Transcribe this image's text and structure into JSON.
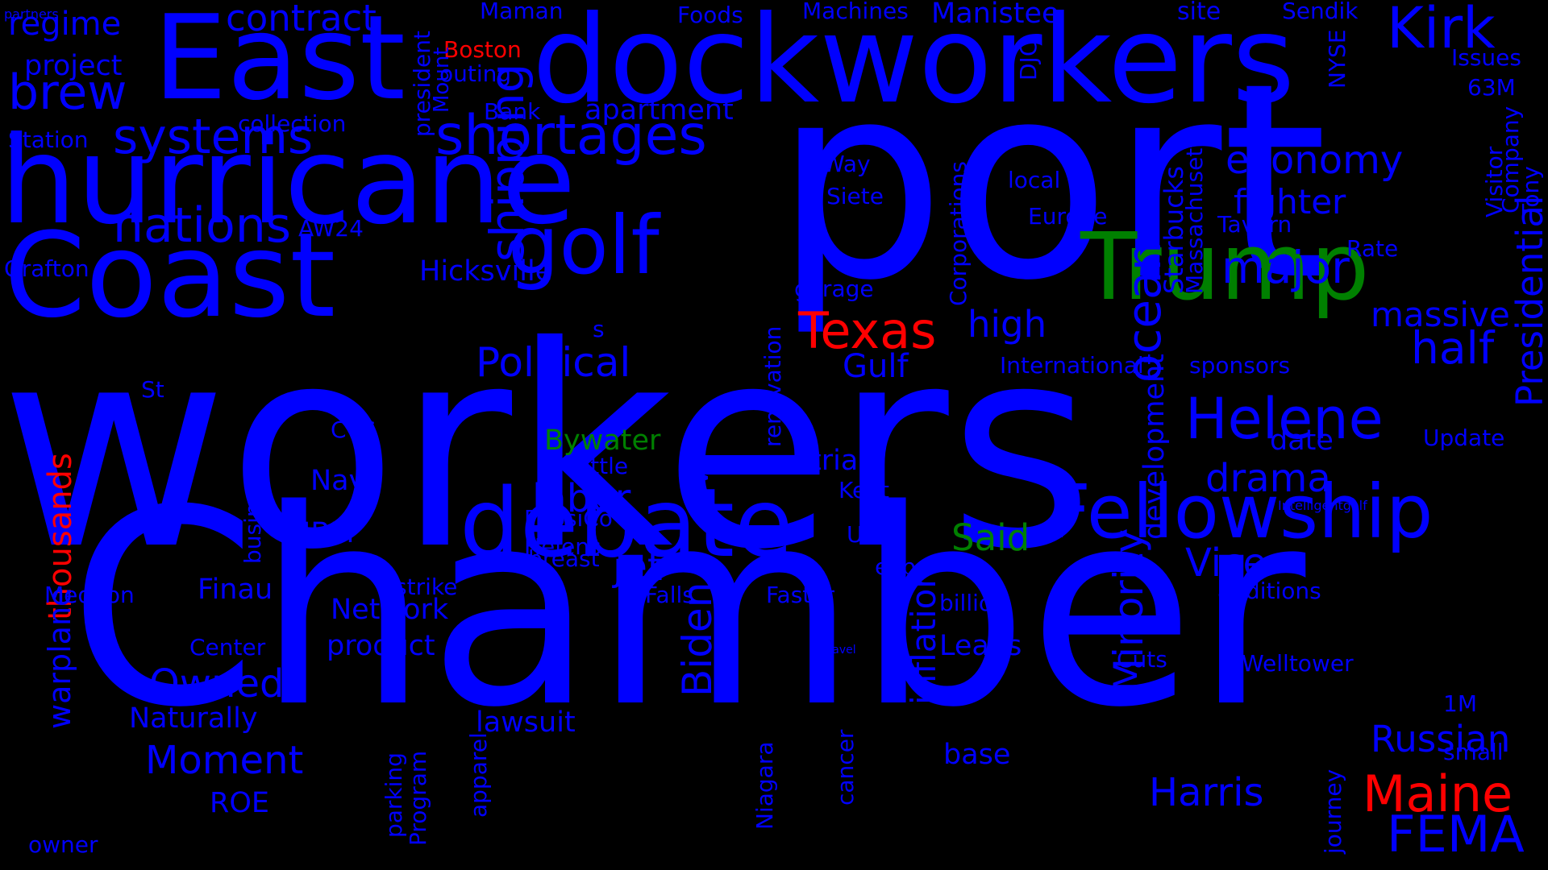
{
  "palette": {
    "background": "#000000",
    "primary": "#0000ff",
    "accent_red": "#ff0000",
    "accent_green": "#008000"
  },
  "words": [
    {
      "text": "workers",
      "color": "#0000ff"
    },
    {
      "text": "Chamber",
      "color": "#0000ff"
    },
    {
      "text": "port",
      "color": "#0000ff"
    },
    {
      "text": "hurricane",
      "color": "#0000ff"
    },
    {
      "text": "dockworkers",
      "color": "#0000ff"
    },
    {
      "text": "East",
      "color": "#0000ff"
    },
    {
      "text": "Coast",
      "color": "#0000ff"
    },
    {
      "text": "Fellowship",
      "color": "#0000ff"
    },
    {
      "text": "debate",
      "color": "#0000ff"
    },
    {
      "text": "Trump",
      "color": "#008000"
    },
    {
      "text": "shortages",
      "color": "#0000ff"
    },
    {
      "text": "golf",
      "color": "#0000ff"
    },
    {
      "text": "systems",
      "color": "#0000ff"
    },
    {
      "text": "Helene",
      "color": "#0000ff"
    },
    {
      "text": "brew",
      "color": "#0000ff"
    },
    {
      "text": "nations",
      "color": "#0000ff"
    },
    {
      "text": "Kirk",
      "color": "#0000ff"
    },
    {
      "text": "Texas",
      "color": "#ff0000"
    },
    {
      "text": "Maine",
      "color": "#ff0000"
    },
    {
      "text": "FEMA",
      "color": "#0000ff"
    },
    {
      "text": "major",
      "color": "#0000ff"
    },
    {
      "text": "half",
      "color": "#0000ff"
    },
    {
      "text": "economy",
      "color": "#0000ff"
    },
    {
      "text": "contract",
      "color": "#0000ff"
    },
    {
      "text": "Political",
      "color": "#0000ff"
    },
    {
      "text": "shipping",
      "color": "#0000ff"
    },
    {
      "text": "ocean",
      "color": "#0000ff"
    },
    {
      "text": "Presidential",
      "color": "#0000ff"
    },
    {
      "text": "Owned",
      "color": "#0000ff"
    },
    {
      "text": "Moment",
      "color": "#0000ff"
    },
    {
      "text": "Harris",
      "color": "#0000ff"
    },
    {
      "text": "Russian",
      "color": "#0000ff"
    },
    {
      "text": "drama",
      "color": "#0000ff"
    },
    {
      "text": "Vice",
      "color": "#0000ff"
    },
    {
      "text": "Minority",
      "color": "#0000ff"
    },
    {
      "text": "inflation",
      "color": "#0000ff"
    },
    {
      "text": "Biden",
      "color": "#0000ff"
    },
    {
      "text": "massive",
      "color": "#0000ff"
    },
    {
      "text": "fighter",
      "color": "#0000ff"
    },
    {
      "text": "high",
      "color": "#0000ff"
    },
    {
      "text": "Gulf",
      "color": "#0000ff"
    },
    {
      "text": "labor",
      "color": "#0000ff"
    },
    {
      "text": "regime",
      "color": "#0000ff"
    },
    {
      "text": "thousands",
      "color": "#ff0000"
    },
    {
      "text": "warplane",
      "color": "#0000ff"
    },
    {
      "text": "Said",
      "color": "#008000"
    },
    {
      "text": "jet",
      "color": "#0000ff"
    },
    {
      "text": "Network",
      "color": "#0000ff"
    },
    {
      "text": "product",
      "color": "#0000ff"
    },
    {
      "text": "Naturally",
      "color": "#0000ff"
    },
    {
      "text": "lawsuit",
      "color": "#0000ff"
    },
    {
      "text": "Bywater",
      "color": "#008000"
    },
    {
      "text": "Hicksville",
      "color": "#0000ff"
    },
    {
      "text": "project",
      "color": "#0000ff"
    },
    {
      "text": "apartment",
      "color": "#0000ff"
    },
    {
      "text": "Manistee",
      "color": "#0000ff"
    },
    {
      "text": "site",
      "color": "#0000ff"
    },
    {
      "text": "Sendik",
      "color": "#0000ff"
    },
    {
      "text": "Foods",
      "color": "#0000ff"
    },
    {
      "text": "Machines",
      "color": "#0000ff"
    },
    {
      "text": "Maman",
      "color": "#0000ff"
    },
    {
      "text": "Boston",
      "color": "#ff0000"
    },
    {
      "text": "outing",
      "color": "#0000ff"
    },
    {
      "text": "Bank",
      "color": "#0000ff"
    },
    {
      "text": "collection",
      "color": "#0000ff"
    },
    {
      "text": "Station",
      "color": "#0000ff"
    },
    {
      "text": "president",
      "color": "#0000ff"
    },
    {
      "text": "Mount",
      "color": "#0000ff"
    },
    {
      "text": "AW24",
      "color": "#0000ff"
    },
    {
      "text": "Grafton",
      "color": "#0000ff"
    },
    {
      "text": "Issues",
      "color": "#0000ff"
    },
    {
      "text": "63M",
      "color": "#0000ff"
    },
    {
      "text": "NYSE",
      "color": "#0000ff"
    },
    {
      "text": "DJC",
      "color": "#0000ff"
    },
    {
      "text": "Bonne",
      "color": "#0000ff"
    },
    {
      "text": "Tony",
      "color": "#0000ff"
    },
    {
      "text": "Company",
      "color": "#0000ff"
    },
    {
      "text": "Visitor",
      "color": "#0000ff"
    },
    {
      "text": "Way",
      "color": "#0000ff"
    },
    {
      "text": "Siete",
      "color": "#0000ff"
    },
    {
      "text": "local",
      "color": "#0000ff"
    },
    {
      "text": "Europe",
      "color": "#0000ff"
    },
    {
      "text": "Corporations",
      "color": "#0000ff"
    },
    {
      "text": "Starbucks",
      "color": "#0000ff"
    },
    {
      "text": "Massachusetts",
      "color": "#0000ff"
    },
    {
      "text": "Tavern",
      "color": "#0000ff"
    },
    {
      "text": "Rate",
      "color": "#0000ff"
    },
    {
      "text": "garage",
      "color": "#0000ff"
    },
    {
      "text": "renovation",
      "color": "#0000ff"
    },
    {
      "text": "International",
      "color": "#0000ff"
    },
    {
      "text": "sponsors",
      "color": "#0000ff"
    },
    {
      "text": "s",
      "color": "#0000ff"
    },
    {
      "text": "St",
      "color": "#0000ff"
    },
    {
      "text": "CVS",
      "color": "#0000ff"
    },
    {
      "text": "Navy",
      "color": "#0000ff"
    },
    {
      "text": "IBM",
      "color": "#0000ff"
    },
    {
      "text": "businesses",
      "color": "#0000ff"
    },
    {
      "text": "Seattle",
      "color": "#0000ff"
    },
    {
      "text": "PepsiCo",
      "color": "#0000ff"
    },
    {
      "text": "Helens",
      "color": "#0000ff"
    },
    {
      "text": "breast",
      "color": "#0000ff"
    },
    {
      "text": "VP",
      "color": "#0000ff"
    },
    {
      "text": "trial",
      "color": "#0000ff"
    },
    {
      "text": "Kent",
      "color": "#0000ff"
    },
    {
      "text": "USA",
      "color": "#0000ff"
    },
    {
      "text": "expo",
      "color": "#0000ff"
    },
    {
      "text": "development",
      "color": "#0000ff"
    },
    {
      "text": "date",
      "color": "#0000ff"
    },
    {
      "text": "Update",
      "color": "#0000ff"
    },
    {
      "text": "Intelligentgolf",
      "color": "#0000ff"
    },
    {
      "text": "Mequon",
      "color": "#0000ff"
    },
    {
      "text": "Finau",
      "color": "#0000ff"
    },
    {
      "text": "strike",
      "color": "#0000ff"
    },
    {
      "text": "Falls",
      "color": "#0000ff"
    },
    {
      "text": "Faster",
      "color": "#0000ff"
    },
    {
      "text": "billion",
      "color": "#0000ff"
    },
    {
      "text": "additions",
      "color": "#0000ff"
    },
    {
      "text": "Center",
      "color": "#0000ff"
    },
    {
      "text": "Travel",
      "color": "#0000ff"
    },
    {
      "text": "Leads",
      "color": "#0000ff"
    },
    {
      "text": "Cuts",
      "color": "#0000ff"
    },
    {
      "text": "Welltower",
      "color": "#0000ff"
    },
    {
      "text": "1M",
      "color": "#0000ff"
    },
    {
      "text": "small",
      "color": "#0000ff"
    },
    {
      "text": "journey",
      "color": "#0000ff"
    },
    {
      "text": "ROE",
      "color": "#0000ff"
    },
    {
      "text": "parking",
      "color": "#0000ff"
    },
    {
      "text": "Program",
      "color": "#0000ff"
    },
    {
      "text": "apparel",
      "color": "#0000ff"
    },
    {
      "text": "Niagara",
      "color": "#0000ff"
    },
    {
      "text": "cancer",
      "color": "#0000ff"
    },
    {
      "text": "base",
      "color": "#0000ff"
    },
    {
      "text": "owner",
      "color": "#0000ff"
    },
    {
      "text": "partners",
      "color": "#0000ff"
    }
  ]
}
